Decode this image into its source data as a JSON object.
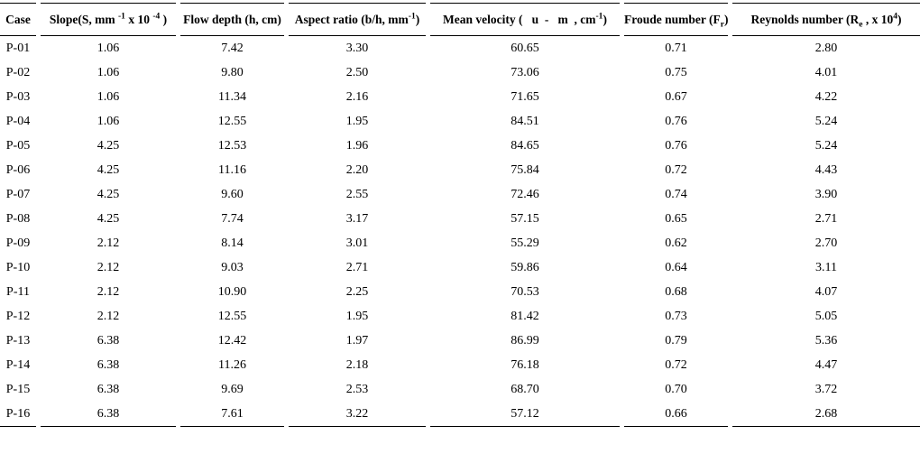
{
  "table": {
    "colors": {
      "text": "#000000",
      "background": "#ffffff",
      "rule": "#000000"
    },
    "columns": [
      {
        "name": "case",
        "label_parts": [
          {
            "t": "text",
            "v": "Case"
          }
        ]
      },
      {
        "name": "slope",
        "label_parts": [
          {
            "t": "text",
            "v": "Slope(S, mm "
          },
          {
            "t": "sup",
            "v": "-1"
          },
          {
            "t": "text",
            "v": " x 10 "
          },
          {
            "t": "sup",
            "v": "-4"
          },
          {
            "t": "text",
            "v": " )"
          }
        ]
      },
      {
        "name": "flow_depth",
        "label_parts": [
          {
            "t": "text",
            "v": "Flow depth (h, cm)"
          }
        ]
      },
      {
        "name": "aspect_ratio",
        "label_parts": [
          {
            "t": "text",
            "v": "Aspect ratio (b/h, mm"
          },
          {
            "t": "sup",
            "v": "-1"
          },
          {
            "t": "text",
            "v": ")"
          }
        ]
      },
      {
        "name": "mean_velocity",
        "label_parts": [
          {
            "t": "text",
            "v": "Mean velocity (   u  -   m  , cm"
          },
          {
            "t": "sup",
            "v": "-1"
          },
          {
            "t": "text",
            "v": ")"
          }
        ]
      },
      {
        "name": "froude_number",
        "label_parts": [
          {
            "t": "text",
            "v": "Froude number (F"
          },
          {
            "t": "sub",
            "v": "r"
          },
          {
            "t": "text",
            "v": ")"
          }
        ]
      },
      {
        "name": "reynolds_number",
        "label_parts": [
          {
            "t": "text",
            "v": "Reynolds number (R"
          },
          {
            "t": "sub",
            "v": "e"
          },
          {
            "t": "text",
            "v": " , x 10"
          },
          {
            "t": "sup",
            "v": "4"
          },
          {
            "t": "text",
            "v": ")"
          }
        ]
      }
    ],
    "rows": [
      [
        "P-01",
        "1.06",
        "7.42",
        "3.30",
        "60.65",
        "0.71",
        "2.80"
      ],
      [
        "P-02",
        "1.06",
        "9.80",
        "2.50",
        "73.06",
        "0.75",
        "4.01"
      ],
      [
        "P-03",
        "1.06",
        "11.34",
        "2.16",
        "71.65",
        "0.67",
        "4.22"
      ],
      [
        "P-04",
        "1.06",
        "12.55",
        "1.95",
        "84.51",
        "0.76",
        "5.24"
      ],
      [
        "P-05",
        "4.25",
        "12.53",
        "1.96",
        "84.65",
        "0.76",
        "5.24"
      ],
      [
        "P-06",
        "4.25",
        "11.16",
        "2.20",
        "75.84",
        "0.72",
        "4.43"
      ],
      [
        "P-07",
        "4.25",
        "9.60",
        "2.55",
        "72.46",
        "0.74",
        "3.90"
      ],
      [
        "P-08",
        "4.25",
        "7.74",
        "3.17",
        "57.15",
        "0.65",
        "2.71"
      ],
      [
        "P-09",
        "2.12",
        "8.14",
        "3.01",
        "55.29",
        "0.62",
        "2.70"
      ],
      [
        "P-10",
        "2.12",
        "9.03",
        "2.71",
        "59.86",
        "0.64",
        "3.11"
      ],
      [
        "P-11",
        "2.12",
        "10.90",
        "2.25",
        "70.53",
        "0.68",
        "4.07"
      ],
      [
        "P-12",
        "2.12",
        "12.55",
        "1.95",
        "81.42",
        "0.73",
        "5.05"
      ],
      [
        "P-13",
        "6.38",
        "12.42",
        "1.97",
        "86.99",
        "0.79",
        "5.36"
      ],
      [
        "P-14",
        "6.38",
        "11.26",
        "2.18",
        "76.18",
        "0.72",
        "4.47"
      ],
      [
        "P-15",
        "6.38",
        "9.69",
        "2.53",
        "68.70",
        "0.70",
        "3.72"
      ],
      [
        "P-16",
        "6.38",
        "7.61",
        "3.22",
        "57.12",
        "0.66",
        "2.68"
      ]
    ]
  }
}
